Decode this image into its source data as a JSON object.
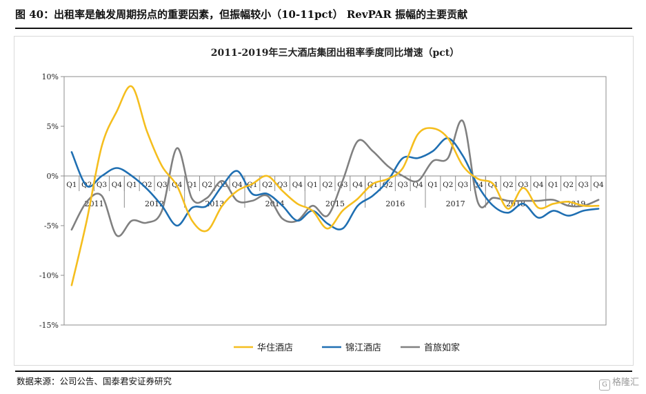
{
  "figure": {
    "title": "图 40：出租率是触发周期拐点的重要因素，但振幅较小（10-11pct）  RevPAR 振幅的主要贡献",
    "source": "数据来源：公司公告、国泰君安证券研究",
    "watermark": "格隆汇",
    "watermark_icon": "G"
  },
  "chart_data": {
    "type": "line",
    "title": "2011-2019年三大酒店集团出租率季度同比增速（pct）",
    "ylim": [
      -15,
      10
    ],
    "yticks": [
      10,
      5,
      0,
      -5,
      -10,
      -15
    ],
    "ytick_labels": [
      "10%",
      "5%",
      "0%",
      "-5%",
      "-10%",
      "-15%"
    ],
    "quarters": [
      "Q1",
      "Q2",
      "Q3",
      "Q4",
      "Q1",
      "Q2",
      "Q3",
      "Q4",
      "Q1",
      "Q2",
      "Q3",
      "Q4",
      "Q1",
      "Q2",
      "Q3",
      "Q4",
      "Q1",
      "Q2",
      "Q3",
      "Q4",
      "Q1",
      "Q2",
      "Q3",
      "Q4",
      "Q1",
      "Q2",
      "Q3",
      "Q4",
      "Q1",
      "Q2",
      "Q3",
      "Q4",
      "Q1",
      "Q2",
      "Q3",
      "Q4"
    ],
    "years": [
      "2011",
      "2012",
      "2013",
      "2014",
      "2015",
      "2016",
      "2017",
      "2018",
      "2019"
    ],
    "grid": false,
    "legend_position": "bottom",
    "series": [
      {
        "name": "华住酒店",
        "color": "#F5BE1E",
        "values": [
          -11.0,
          -4.5,
          3.0,
          6.5,
          9.0,
          4.5,
          1.0,
          -1.0,
          -4.5,
          -5.5,
          -3.0,
          -1.5,
          -0.8,
          0.0,
          -1.5,
          -2.8,
          -3.5,
          -5.3,
          -3.5,
          -2.3,
          -0.8,
          -0.3,
          0.8,
          4.2,
          4.8,
          3.8,
          1.0,
          -0.3,
          -0.8,
          -3.3,
          -1.2,
          -3.2,
          -2.8,
          -2.6,
          -3.0,
          -3.0
        ]
      },
      {
        "name": "锦江酒店",
        "color": "#1F6FB2",
        "values": [
          2.4,
          -1.0,
          0.0,
          0.8,
          0.0,
          -1.3,
          -3.0,
          -5.0,
          -3.2,
          -3.0,
          -1.0,
          0.5,
          -1.8,
          -1.8,
          -3.0,
          -4.5,
          -3.5,
          -4.8,
          -5.3,
          -3.0,
          -2.0,
          -0.5,
          1.8,
          1.8,
          2.5,
          3.8,
          2.0,
          -1.0,
          -3.0,
          -3.7,
          -2.8,
          -4.2,
          -3.5,
          -4.0,
          -3.5,
          -3.3
        ]
      },
      {
        "name": "首旅如家",
        "color": "#808080",
        "values": [
          -5.4,
          -2.6,
          -2.0,
          -6.0,
          -4.5,
          -4.7,
          -3.5,
          2.8,
          -2.3,
          -2.2,
          -0.5,
          -2.5,
          -2.5,
          -2.0,
          -4.3,
          -4.5,
          -3.0,
          -4.0,
          -0.5,
          3.5,
          2.5,
          1.0,
          0.0,
          -0.5,
          1.5,
          1.8,
          5.5,
          -2.7,
          -2.2,
          -2.5,
          -2.5,
          -2.5,
          -2.4,
          -3.0,
          -3.0,
          -2.4
        ]
      }
    ]
  }
}
